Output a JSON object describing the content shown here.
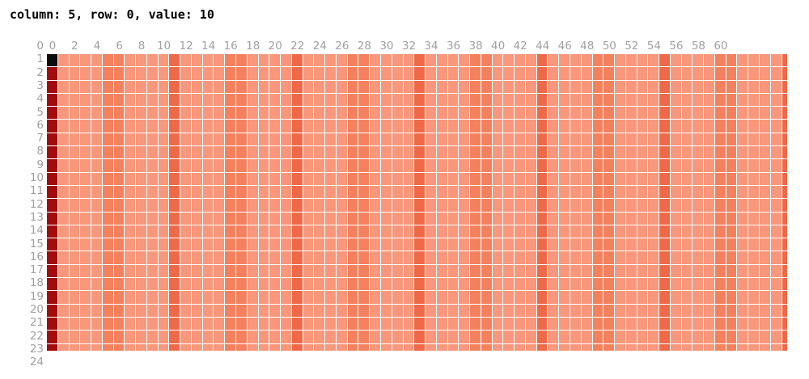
{
  "status_bar": {
    "text": "column: 5, row: 0, value: 10"
  },
  "chart_data": {
    "type": "heatmap",
    "tooltip_readout": {
      "column": 5,
      "row": 0,
      "value": 10
    },
    "column_axis": {
      "labels": [
        "0",
        "2",
        "4",
        "6",
        "8",
        "10",
        "12",
        "14",
        "16",
        "18",
        "20",
        "22",
        "24",
        "26",
        "28",
        "30",
        "32",
        "34",
        "36",
        "38",
        "40",
        "42",
        "44",
        "46",
        "48",
        "50",
        "52",
        "54",
        "56",
        "58",
        "60"
      ],
      "label_step": 2
    },
    "row_axis": {
      "labels": [
        "0",
        "1",
        "2",
        "3",
        "4",
        "5",
        "6",
        "7",
        "8",
        "9",
        "10",
        "11",
        "12",
        "13",
        "14",
        "15",
        "16",
        "17",
        "18",
        "19",
        "20",
        "21",
        "22",
        "23",
        "24"
      ]
    },
    "grid": {
      "visible_columns": 67,
      "visible_rows": 23,
      "clipped_right_column": true,
      "clipped_bottom_row": true
    },
    "selected_cell": {
      "row_index": 0,
      "column_index": 0
    },
    "shading_pattern": {
      "period": 11,
      "strong_at_mod": [
        0
      ],
      "mild_at_mod": [
        5,
        6
      ]
    },
    "column_shading": [
      "darkred",
      "base",
      "base",
      "base",
      "base",
      "mild",
      "mild",
      "base",
      "base",
      "base",
      "base",
      "strong",
      "base",
      "base",
      "base",
      "base",
      "mild",
      "mild",
      "base",
      "base",
      "base",
      "base",
      "strong",
      "base",
      "base",
      "base",
      "base",
      "mild",
      "mild",
      "base",
      "base",
      "base",
      "base",
      "strong",
      "base",
      "base",
      "base",
      "base",
      "mild",
      "mild",
      "base",
      "base",
      "base",
      "base",
      "strong",
      "base",
      "base",
      "base",
      "base",
      "mild",
      "mild",
      "base",
      "base",
      "base",
      "base",
      "strong",
      "base",
      "base",
      "base",
      "base",
      "mild",
      "mild",
      "base",
      "base",
      "base",
      "base",
      "strong"
    ],
    "palette": {
      "base": "#f8977b",
      "mild": "#f4815e",
      "strong": "#ee6948",
      "darkred": "#a20c0c",
      "selected": "#0c0c0c",
      "gridline": "#ffffff",
      "label_color": "#a0a0a0"
    }
  }
}
